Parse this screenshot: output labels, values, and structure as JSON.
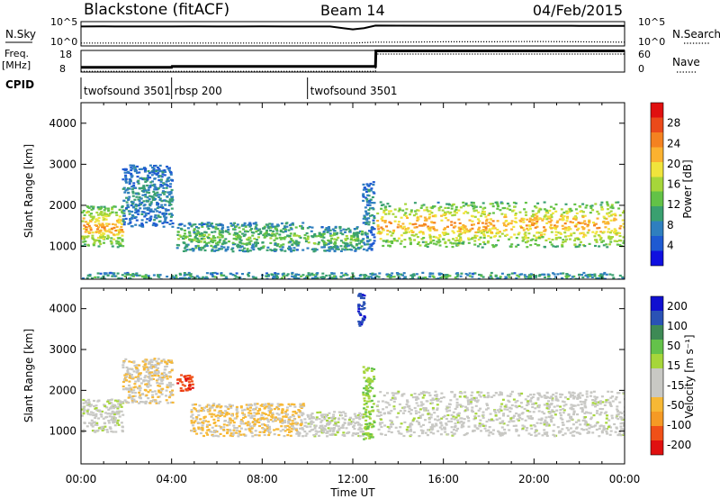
{
  "header": {
    "station": "Blackstone (fitACF)",
    "beam": "Beam 14",
    "date": "04/Feb/2015"
  },
  "panels": {
    "nsky": {
      "label": "N.Sky",
      "right_label": "N.Search",
      "ticks": [
        "10^5",
        "10^0"
      ]
    },
    "freq": {
      "label_top": "Freq.",
      "label_bottom": "[MHz]",
      "left_ticks": [
        "18",
        "8"
      ],
      "right_label": "Nave",
      "right_ticks": [
        "60",
        "0"
      ]
    },
    "cpid": {
      "label": "CPID"
    }
  },
  "chart_data": [
    {
      "type": "line",
      "title": "N.Sky / N.Search",
      "ylabel": "N.Sky",
      "y_scale": "log",
      "y_ticks": [
        "10^0",
        "10^5"
      ],
      "series": [
        {
          "name": "N.Sky",
          "style": "solid",
          "x_hours": [
            0,
            1,
            2,
            3,
            4,
            5,
            6,
            7,
            8,
            9,
            10,
            11,
            12,
            12.5,
            13,
            14,
            16,
            18,
            20,
            22,
            24
          ],
          "values": [
            30000,
            31000,
            30000,
            30000,
            30000,
            31000,
            30000,
            30000,
            31000,
            30000,
            30000,
            30000,
            6000,
            12000,
            50000,
            48000,
            46000,
            45000,
            44000,
            42000,
            40000
          ]
        },
        {
          "name": "N.Search",
          "style": "dotted",
          "x_hours": [
            0,
            2,
            4,
            6,
            8,
            10,
            12,
            13,
            14,
            16,
            18,
            20,
            22,
            24
          ],
          "values": [
            3,
            3,
            3,
            3,
            3,
            3,
            3,
            5,
            5,
            6,
            6,
            7,
            6,
            5
          ]
        }
      ]
    },
    {
      "type": "line",
      "title": "Freq. / Nave",
      "ylabel": "Freq. [MHz]",
      "ylim_left": [
        8,
        18
      ],
      "ylim_right": [
        0,
        60
      ],
      "series": [
        {
          "name": "Freq.",
          "axis": "left",
          "x_hours": [
            0,
            4,
            4.02,
            13.0,
            13.02,
            24
          ],
          "values": [
            10.2,
            10.2,
            10.6,
            10.6,
            17.8,
            17.8
          ]
        },
        {
          "name": "Nave",
          "axis": "right",
          "x_hours": [
            0,
            13.0,
            13.02,
            24
          ],
          "values": [
            2,
            2,
            50,
            50
          ]
        }
      ]
    },
    {
      "type": "table",
      "title": "CPID",
      "segments": [
        {
          "label": "twofsound 3501",
          "start_hour": 0,
          "end_hour": 4.0
        },
        {
          "label": "rbsp 200",
          "start_hour": 4.0,
          "end_hour": 10.0
        },
        {
          "label": "twofsound 3501",
          "start_hour": 10.0,
          "end_hour": 24
        }
      ]
    },
    {
      "type": "heatmap",
      "title": "Power",
      "xlabel": "",
      "ylabel": "Slant Range [km]",
      "xlim": [
        0,
        24
      ],
      "ylim": [
        200,
        4500
      ],
      "x_ticks": [
        "00:00",
        "04:00",
        "08:00",
        "12:00",
        "16:00",
        "20:00",
        "00:00"
      ],
      "y_ticks": [
        1000,
        2000,
        3000,
        4000
      ],
      "colorbar": {
        "label": "Power [dB]",
        "range": [
          0,
          32
        ],
        "ticks": [
          4,
          8,
          12,
          16,
          20,
          24,
          28
        ],
        "colors": [
          "#1010e0",
          "#1e5ad2",
          "#2f7fbf",
          "#3aa070",
          "#63c247",
          "#a6d63a",
          "#f0e43c",
          "#fbb230",
          "#f48220",
          "#eb4a1a",
          "#e01010"
        ]
      },
      "regions": [
        {
          "x": [
            0,
            1.8
          ],
          "y": [
            1000,
            2000
          ],
          "value": 20
        },
        {
          "x": [
            1.8,
            4
          ],
          "y": [
            1500,
            3000
          ],
          "value": 8
        },
        {
          "x": [
            4.2,
            9.8
          ],
          "y": [
            900,
            1600
          ],
          "value": 12
        },
        {
          "x": [
            9.8,
            12.4
          ],
          "y": [
            900,
            1500
          ],
          "value": 12
        },
        {
          "x": [
            12.4,
            12.9
          ],
          "y": [
            900,
            2600
          ],
          "value": 8
        },
        {
          "x": [
            13,
            24
          ],
          "y": [
            1000,
            2100
          ],
          "value": 20
        },
        {
          "x": [
            0,
            24
          ],
          "y": [
            200,
            380
          ],
          "value": 10
        }
      ]
    },
    {
      "type": "heatmap",
      "title": "Velocity",
      "xlabel": "Time UT",
      "ylabel": "Slant Range [km]",
      "xlim": [
        0,
        24
      ],
      "ylim": [
        200,
        4500
      ],
      "x_ticks": [
        "00:00",
        "04:00",
        "08:00",
        "12:00",
        "16:00",
        "20:00",
        "00:00"
      ],
      "y_ticks": [
        1000,
        2000,
        3000,
        4000
      ],
      "colorbar": {
        "label": "Velocity [m s⁻¹]",
        "range": [
          -250,
          250
        ],
        "ticks": [
          "200",
          "100",
          "50",
          "15",
          "-15",
          "-50",
          "-100",
          "-200"
        ],
        "colors": [
          "#e01010",
          "#f05018",
          "#f59a25",
          "#f7b835",
          "#c8c8c4",
          "#c8c8c4",
          "#a6d63a",
          "#64c24a",
          "#3e8a55",
          "#2a52b5",
          "#1010d0"
        ]
      },
      "regions": [
        {
          "x": [
            0,
            1.8
          ],
          "y": [
            1000,
            1800
          ],
          "value": 0
        },
        {
          "x": [
            1.8,
            4
          ],
          "y": [
            1700,
            2800
          ],
          "value": -60
        },
        {
          "x": [
            4.2,
            4.9
          ],
          "y": [
            2000,
            2400
          ],
          "value": -200
        },
        {
          "x": [
            4.8,
            9.8
          ],
          "y": [
            900,
            1700
          ],
          "value": -70
        },
        {
          "x": [
            9.8,
            12.4
          ],
          "y": [
            900,
            1500
          ],
          "value": 0
        },
        {
          "x": [
            12.4,
            12.9
          ],
          "y": [
            800,
            2600
          ],
          "value": 60
        },
        {
          "x": [
            13,
            24
          ],
          "y": [
            900,
            2000
          ],
          "value": 0
        },
        {
          "x": [
            12.2,
            12.5
          ],
          "y": [
            3600,
            4400
          ],
          "value": 200
        }
      ]
    }
  ]
}
